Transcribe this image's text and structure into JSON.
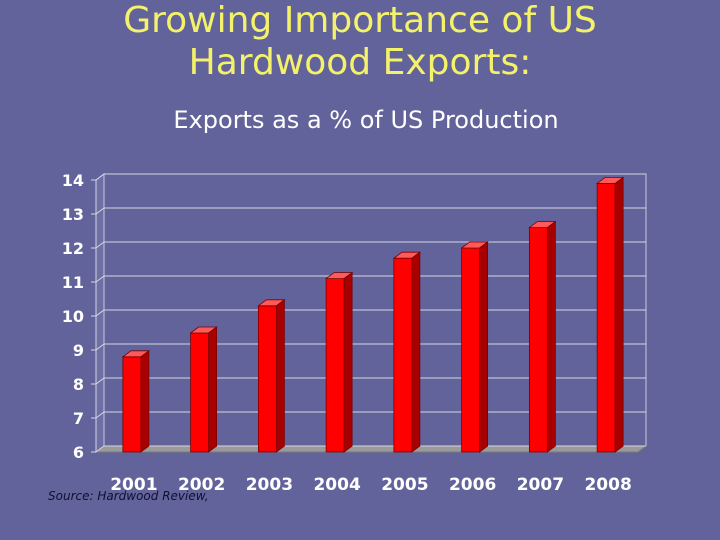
{
  "slide": {
    "title_line1": "Growing Importance of US",
    "title_line2": "Hardwood Exports:",
    "subtitle": "Exports as a % of US Production",
    "source": "Source: Hardwood Review,"
  },
  "colors": {
    "background": "#62639B",
    "title": "#F4F16A",
    "bar_front": "#FF0000",
    "bar_top": "#FF5A5A",
    "bar_side": "#A80000",
    "plot_back": "#62639B",
    "plot_floor": "#9A9A9A"
  },
  "chart_data": {
    "type": "bar",
    "categories": [
      "2001",
      "2002",
      "2003",
      "2004",
      "2005",
      "2006",
      "2007",
      "2008"
    ],
    "values": [
      8.8,
      9.5,
      10.3,
      11.1,
      11.7,
      12.0,
      12.6,
      13.9
    ],
    "title": "Exports as a % of US Production",
    "xlabel": "",
    "ylabel": "",
    "ylim": [
      6,
      14
    ],
    "yticks": [
      6,
      7,
      8,
      9,
      10,
      11,
      12,
      13,
      14
    ],
    "grid": true,
    "legend": "none",
    "style": "3d-bars"
  }
}
